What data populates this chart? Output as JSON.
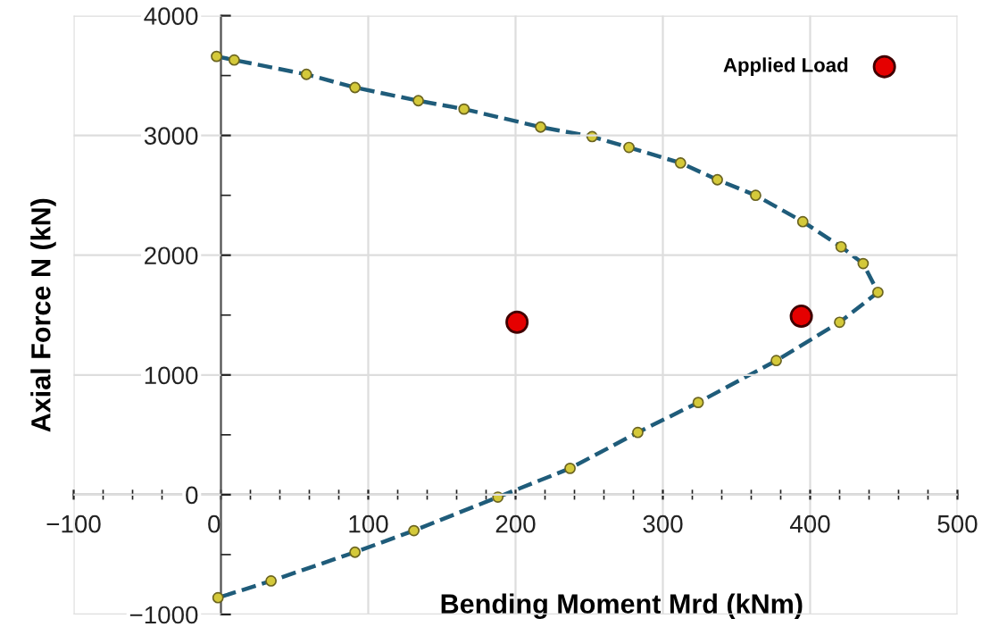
{
  "chart_data": {
    "type": "line",
    "xlabel": "Bending Moment Mrd (kNm)",
    "ylabel": "Axial Force N (kN)",
    "xlim": [
      -100,
      500
    ],
    "ylim": [
      -1000,
      4000
    ],
    "xticks": [
      -100,
      0,
      100,
      200,
      300,
      400,
      500
    ],
    "yticks": [
      -1000,
      0,
      1000,
      2000,
      3000,
      4000
    ],
    "grid": true,
    "legend": "top right",
    "line_style": "dashed",
    "marker": "circle",
    "series": [
      {
        "color": "#1f5c7a",
        "x": [
          -3,
          9,
          58,
          91,
          134,
          165,
          217,
          252,
          277,
          312,
          337,
          363,
          395,
          421,
          436,
          446,
          420,
          377,
          324,
          283,
          237,
          188,
          131,
          91,
          34,
          -2
        ],
        "values": [
          3660,
          3630,
          3510,
          3400,
          3290,
          3220,
          3070,
          2990,
          2900,
          2770,
          2630,
          2500,
          2280,
          2070,
          1930,
          1690,
          1440,
          1120,
          770,
          520,
          220,
          -20,
          -300,
          -480,
          -720,
          -860
        ]
      },
      {
        "type": "scatter",
        "name": "Applied Load",
        "color": "#e50000",
        "x": [
          201,
          394
        ],
        "values": [
          1440,
          1490
        ]
      }
    ]
  }
}
